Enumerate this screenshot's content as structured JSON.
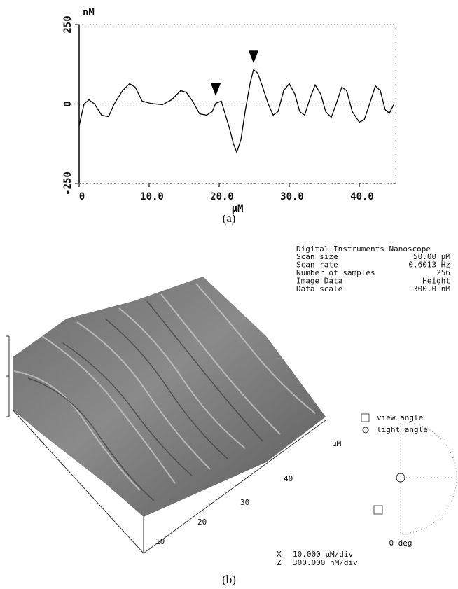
{
  "chart_data": {
    "type": "line",
    "y_label": "nM",
    "x_label": "µM",
    "color": "#000000",
    "x": [
      0,
      0.7,
      1.4,
      2.2,
      3.2,
      4.2,
      5,
      6.2,
      7.2,
      8,
      9,
      10.2,
      11.9,
      13.2,
      14.5,
      15.3,
      16.2,
      17.2,
      18.2,
      19,
      19.5,
      20.3,
      20.9,
      21.5,
      22,
      22.5,
      23.1,
      23.7,
      24.4,
      24.9,
      25.5,
      26.2,
      27,
      27.7,
      28.4,
      29.2,
      30,
      30.8,
      31.5,
      32.2,
      33,
      33.7,
      34.5,
      35.2,
      36,
      36.7,
      37.5,
      38.2,
      39,
      40,
      40.7,
      41.5,
      42.3,
      43,
      43.7,
      44.3,
      45
    ],
    "values": [
      -68,
      0,
      13,
      0,
      -35,
      -40,
      0,
      42,
      64,
      53,
      9,
      2,
      -2,
      13,
      42,
      37,
      9,
      -31,
      -35,
      -24,
      2,
      9,
      -35,
      -79,
      -123,
      -152,
      -112,
      -24,
      64,
      108,
      97,
      53,
      0,
      -35,
      -24,
      42,
      64,
      31,
      -24,
      -35,
      20,
      60,
      31,
      -24,
      -42,
      0,
      53,
      42,
      -24,
      -57,
      -50,
      2,
      57,
      42,
      -18,
      -29,
      2
    ],
    "markers": {
      "x": [
        19.5,
        24.9
      ],
      "y": [
        12,
        115
      ]
    },
    "xlim": [
      0,
      45.2
    ],
    "ylim": [
      -250,
      250
    ],
    "xticks": [
      0,
      {
        "value": 10,
        "label": "10.0"
      },
      {
        "value": 20,
        "label": "20.0"
      },
      {
        "value": 30,
        "label": "30.0"
      },
      {
        "value": 40,
        "label": "40.0"
      }
    ],
    "yticks": [
      -250,
      0,
      250
    ],
    "grid": true
  },
  "caption_a": "(a)",
  "panel_b": {
    "info_title": "Digital Instruments Nanoscope",
    "info_rows": [
      [
        "Scan size",
        "50.00 µM"
      ],
      [
        "Scan rate",
        "0.6013 Hz"
      ],
      [
        "Number of samples",
        "256"
      ],
      [
        "Image Data",
        "Height"
      ],
      [
        "Data scale",
        "300.0 nM"
      ]
    ],
    "axis_ticks": [
      "10",
      "20",
      "30",
      "40"
    ],
    "axis_unit": "µM",
    "view_angle": "view angle",
    "light_angle": "light angle",
    "angle_value": "0 deg",
    "scale_x": [
      "X",
      "10.000 µM/div"
    ],
    "scale_z": [
      "Z",
      "300.000 nM/div"
    ],
    "caption": "(b)"
  }
}
